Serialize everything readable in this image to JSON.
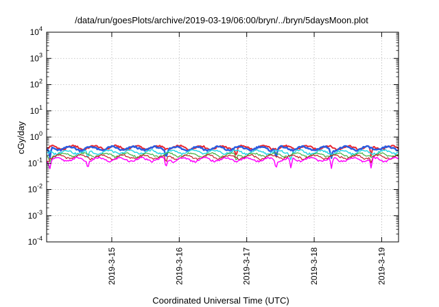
{
  "chart_data": {
    "type": "line",
    "title": "/data/run/goesPlots/archive/2019-03-19/06:00/bryn/../bryn/5daysMoon.plot",
    "xlabel": "Coordinated Universal Time (UTC)",
    "ylabel": "cGy/day",
    "yscale": "log",
    "ylim": [
      0.0001,
      10000
    ],
    "xlim": [
      "2019-03-14 00:50",
      "2019-03-19 06:00"
    ],
    "grid": true,
    "y_ticks": [
      {
        "base": "10",
        "exp": "-4"
      },
      {
        "base": "10",
        "exp": "-3"
      },
      {
        "base": "10",
        "exp": "-2"
      },
      {
        "base": "10",
        "exp": "-1"
      },
      {
        "base": "10",
        "exp": "0"
      },
      {
        "base": "10",
        "exp": "1"
      },
      {
        "base": "10",
        "exp": "2"
      },
      {
        "base": "10",
        "exp": "3"
      },
      {
        "base": "10",
        "exp": "4"
      }
    ],
    "x_ticks": [
      "2019-3-15",
      "2019-3-16",
      "2019-3-17",
      "2019-3-18",
      "2019-3-19"
    ],
    "dips": [
      0.05,
      0.61,
      1.77,
      2.81,
      3.4,
      3.62,
      4.22,
      4.81
    ],
    "series": [
      {
        "color": "#e8242e",
        "level": 0.4,
        "dip_level": 0.17,
        "dips": [
          2.81,
          4.81
        ],
        "width": 2
      },
      {
        "color": "#2a5ce0",
        "level": 0.37,
        "dip_level": 0.15,
        "dips": [
          0.05,
          1.77,
          3.4,
          4.22
        ],
        "width": 2.5
      },
      {
        "color": "#25d3e6",
        "level": 0.27,
        "dip_level": 0.13,
        "dips": [
          0.61,
          3.62
        ],
        "width": 1.5
      },
      {
        "color": "#3fae3f",
        "level": 0.21,
        "dip_level": 0.11,
        "dips": [
          0.05,
          2.81
        ],
        "width": 1.2
      },
      {
        "color": "#c21a26",
        "level": 0.175,
        "dip_level": 0.1,
        "dips": [
          1.77,
          4.81
        ],
        "width": 1.2
      },
      {
        "color": "#ff00ff",
        "level": 0.14,
        "dip_level": 0.06,
        "dips": [
          0.05,
          0.61,
          1.77,
          3.4,
          3.62,
          4.22,
          4.81
        ],
        "width": 1.5
      }
    ]
  }
}
